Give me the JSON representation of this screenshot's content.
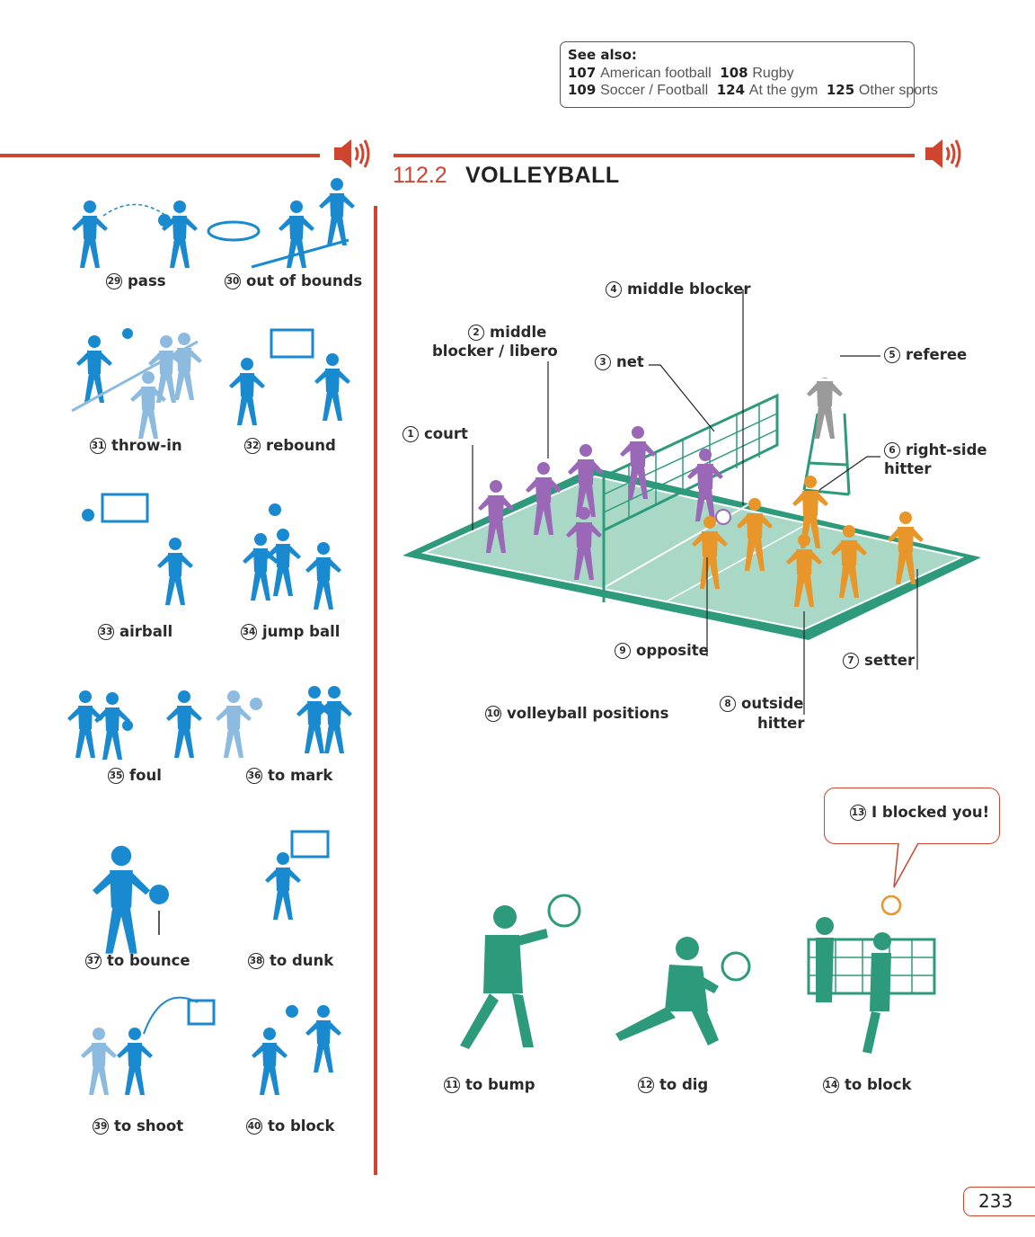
{
  "see_also": {
    "heading": "See also:",
    "refs": [
      {
        "num": "107",
        "text": "American football"
      },
      {
        "num": "108",
        "text": "Rugby"
      },
      {
        "num": "109",
        "text": "Soccer / Football"
      },
      {
        "num": "124",
        "text": "At the gym"
      },
      {
        "num": "125",
        "text": "Other sports"
      }
    ]
  },
  "section": {
    "number": "112.2",
    "title": "VOLLEYBALL"
  },
  "basketball_terms": [
    {
      "num": "29",
      "label": "pass"
    },
    {
      "num": "30",
      "label": "out of bounds"
    },
    {
      "num": "31",
      "label": "throw-in"
    },
    {
      "num": "32",
      "label": "rebound"
    },
    {
      "num": "33",
      "label": "airball"
    },
    {
      "num": "34",
      "label": "jump ball"
    },
    {
      "num": "35",
      "label": "foul"
    },
    {
      "num": "36",
      "label": "to mark"
    },
    {
      "num": "37",
      "label": "to bounce"
    },
    {
      "num": "38",
      "label": "to dunk"
    },
    {
      "num": "39",
      "label": "to shoot"
    },
    {
      "num": "40",
      "label": "to block"
    }
  ],
  "court_labels": [
    {
      "num": "1",
      "label": "court"
    },
    {
      "num": "2",
      "label": "middle",
      "label2": "blocker / libero"
    },
    {
      "num": "3",
      "label": "net"
    },
    {
      "num": "4",
      "label": "middle blocker"
    },
    {
      "num": "5",
      "label": "referee"
    },
    {
      "num": "6",
      "label": "right-side",
      "label2": "hitter"
    },
    {
      "num": "7",
      "label": "setter"
    },
    {
      "num": "8",
      "label": "outside",
      "label2": "hitter"
    },
    {
      "num": "9",
      "label": "opposite"
    },
    {
      "num": "10",
      "label": "volleyball positions"
    }
  ],
  "actions": [
    {
      "num": "11",
      "label": "to bump"
    },
    {
      "num": "12",
      "label": "to dig"
    },
    {
      "num": "14",
      "label": "to block"
    }
  ],
  "bubble": {
    "num": "13",
    "text": "I blocked you!"
  },
  "page_number": "233",
  "colors": {
    "accent": "#d0452f",
    "blue": "#1a8ad0",
    "light_blue": "#8dbbe0",
    "green": "#2e9a7c",
    "purple": "#9b68b8",
    "orange": "#e8952a",
    "grey": "#9a9a9a"
  },
  "icons": [
    "speaker-icon",
    "basketball-player-icon",
    "volleyball-player-icon",
    "volleyball-court-icon"
  ]
}
